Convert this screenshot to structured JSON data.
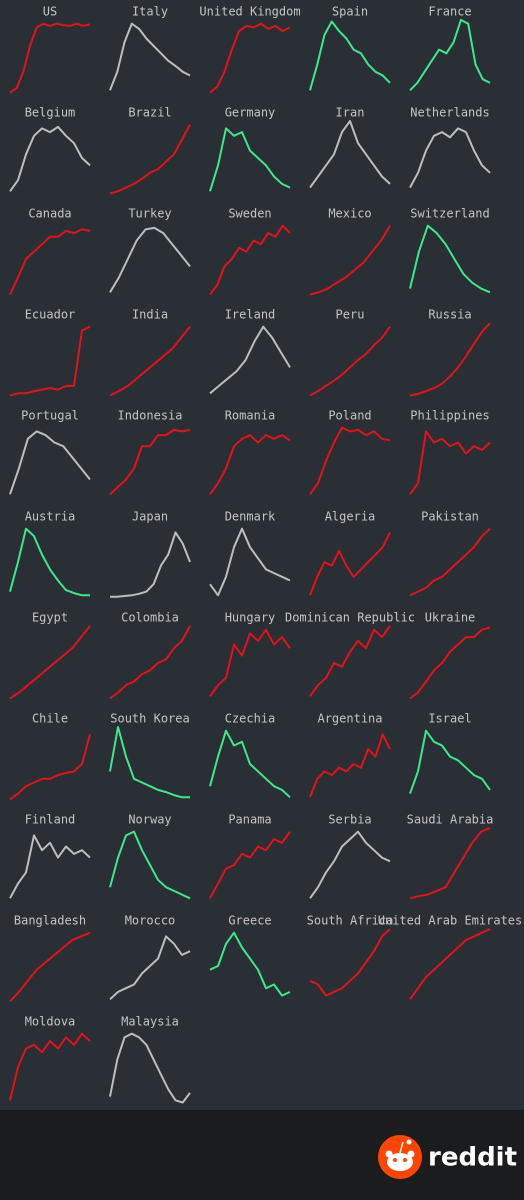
{
  "chart_data": {
    "type": "line",
    "ylim": [
      0,
      100
    ],
    "series": [
      {
        "name": "US",
        "color": "#e3121b",
        "values": [
          2,
          8,
          30,
          65,
          90,
          95,
          92,
          95,
          93,
          92,
          95,
          92,
          94
        ]
      },
      {
        "name": "Italy",
        "color": "#bdbdbd",
        "values": [
          5,
          30,
          70,
          95,
          88,
          75,
          65,
          55,
          45,
          38,
          30,
          25
        ]
      },
      {
        "name": "United Kingdom",
        "color": "#e3121b",
        "values": [
          2,
          10,
          30,
          60,
          85,
          92,
          90,
          95,
          88,
          92,
          85,
          90
        ]
      },
      {
        "name": "Spain",
        "color": "#3ee88a",
        "values": [
          5,
          40,
          80,
          98,
          85,
          75,
          60,
          55,
          40,
          30,
          25,
          15
        ]
      },
      {
        "name": "France",
        "color": "#3ee88a",
        "values": [
          5,
          15,
          30,
          45,
          60,
          55,
          70,
          100,
          95,
          40,
          20,
          15
        ]
      },
      {
        "name": "Belgium",
        "color": "#bdbdbd",
        "values": [
          5,
          20,
          55,
          80,
          90,
          85,
          92,
          80,
          70,
          50,
          40
        ]
      },
      {
        "name": "Brazil",
        "color": "#e3121b",
        "values": [
          2,
          5,
          10,
          15,
          22,
          30,
          35,
          45,
          55,
          75,
          95
        ]
      },
      {
        "name": "Germany",
        "color": "#3ee88a",
        "values": [
          5,
          40,
          90,
          80,
          85,
          60,
          50,
          40,
          25,
          15,
          10
        ]
      },
      {
        "name": "Iran",
        "color": "#bdbdbd",
        "values": [
          10,
          25,
          40,
          55,
          85,
          100,
          70,
          55,
          40,
          25,
          15
        ]
      },
      {
        "name": "Netherlands",
        "color": "#bdbdbd",
        "values": [
          10,
          30,
          60,
          80,
          85,
          78,
          90,
          85,
          60,
          40,
          30
        ]
      },
      {
        "name": "Canada",
        "color": "#e3121b",
        "values": [
          2,
          25,
          50,
          60,
          70,
          80,
          80,
          88,
          85,
          90,
          88
        ]
      },
      {
        "name": "Turkey",
        "color": "#bdbdbd",
        "values": [
          5,
          25,
          50,
          75,
          90,
          92,
          85,
          70,
          55,
          40
        ]
      },
      {
        "name": "Sweden",
        "color": "#e3121b",
        "values": [
          2,
          15,
          40,
          50,
          65,
          60,
          75,
          70,
          85,
          80,
          95,
          85
        ]
      },
      {
        "name": "Mexico",
        "color": "#e3121b",
        "values": [
          2,
          5,
          10,
          18,
          25,
          35,
          45,
          60,
          75,
          95
        ]
      },
      {
        "name": "Switzerland",
        "color": "#3ee88a",
        "values": [
          10,
          60,
          95,
          85,
          70,
          50,
          30,
          18,
          10,
          5
        ]
      },
      {
        "name": "Ecuador",
        "color": "#e3121b",
        "values": [
          2,
          5,
          5,
          8,
          10,
          12,
          10,
          15,
          15,
          90,
          95
        ]
      },
      {
        "name": "India",
        "color": "#e3121b",
        "values": [
          2,
          8,
          15,
          25,
          35,
          45,
          55,
          65,
          80,
          95
        ]
      },
      {
        "name": "Ireland",
        "color": "#bdbdbd",
        "values": [
          5,
          15,
          25,
          35,
          50,
          75,
          95,
          80,
          60,
          40
        ]
      },
      {
        "name": "Peru",
        "color": "#e3121b",
        "values": [
          2,
          8,
          15,
          22,
          30,
          40,
          50,
          58,
          70,
          80,
          95
        ]
      },
      {
        "name": "Russia",
        "color": "#e3121b",
        "values": [
          2,
          4,
          8,
          12,
          18,
          28,
          40,
          55,
          72,
          88,
          100
        ]
      },
      {
        "name": "Portugal",
        "color": "#bdbdbd",
        "values": [
          5,
          40,
          80,
          90,
          85,
          75,
          70,
          55,
          40,
          25
        ]
      },
      {
        "name": "Indonesia",
        "color": "#e3121b",
        "values": [
          5,
          15,
          25,
          40,
          70,
          70,
          85,
          85,
          92,
          90,
          92
        ]
      },
      {
        "name": "Romania",
        "color": "#e3121b",
        "values": [
          5,
          20,
          40,
          70,
          80,
          85,
          75,
          85,
          80,
          85,
          78
        ]
      },
      {
        "name": "Poland",
        "color": "#e3121b",
        "values": [
          5,
          20,
          50,
          75,
          95,
          90,
          92,
          85,
          90,
          80,
          78
        ]
      },
      {
        "name": "Philippines",
        "color": "#e3121b",
        "values": [
          5,
          20,
          90,
          75,
          80,
          70,
          75,
          60,
          70,
          65,
          75
        ]
      },
      {
        "name": "Austria",
        "color": "#3ee88a",
        "values": [
          10,
          50,
          95,
          85,
          60,
          40,
          25,
          12,
          8,
          5,
          5
        ]
      },
      {
        "name": "Japan",
        "color": "#bdbdbd",
        "values": [
          3,
          3,
          4,
          5,
          7,
          10,
          20,
          45,
          60,
          90,
          75,
          50
        ]
      },
      {
        "name": "Denmark",
        "color": "#bdbdbd",
        "values": [
          20,
          5,
          30,
          70,
          95,
          70,
          55,
          40,
          35,
          30,
          25
        ]
      },
      {
        "name": "Algeria",
        "color": "#e3121b",
        "values": [
          5,
          30,
          50,
          45,
          65,
          45,
          30,
          40,
          50,
          60,
          70,
          90
        ]
      },
      {
        "name": "Pakistan",
        "color": "#e3121b",
        "values": [
          5,
          10,
          15,
          25,
          30,
          40,
          50,
          60,
          70,
          85,
          95
        ]
      },
      {
        "name": "Egypt",
        "color": "#e3121b",
        "values": [
          2,
          10,
          20,
          30,
          40,
          50,
          60,
          70,
          85,
          100
        ]
      },
      {
        "name": "Colombia",
        "color": "#e3121b",
        "values": [
          2,
          10,
          20,
          25,
          35,
          40,
          50,
          55,
          70,
          80,
          100
        ]
      },
      {
        "name": "Hungary",
        "color": "#e3121b",
        "values": [
          5,
          20,
          30,
          75,
          60,
          90,
          80,
          95,
          75,
          85,
          70
        ]
      },
      {
        "name": "Dominican Republic",
        "color": "#e3121b",
        "values": [
          5,
          20,
          30,
          50,
          45,
          65,
          80,
          70,
          95,
          85,
          100
        ]
      },
      {
        "name": "Ukraine",
        "color": "#e3121b",
        "values": [
          2,
          10,
          25,
          40,
          50,
          65,
          75,
          85,
          85,
          95,
          98
        ]
      },
      {
        "name": "Chile",
        "color": "#e3121b",
        "values": [
          2,
          10,
          20,
          25,
          30,
          30,
          35,
          38,
          40,
          50,
          90
        ]
      },
      {
        "name": "South Korea",
        "color": "#3ee88a",
        "values": [
          40,
          100,
          60,
          30,
          25,
          20,
          15,
          12,
          8,
          5,
          5
        ]
      },
      {
        "name": "Czechia",
        "color": "#3ee88a",
        "values": [
          20,
          60,
          95,
          75,
          80,
          50,
          40,
          30,
          20,
          15,
          5
        ]
      },
      {
        "name": "Argentina",
        "color": "#e3121b",
        "values": [
          5,
          30,
          40,
          35,
          45,
          40,
          50,
          45,
          70,
          60,
          90,
          70
        ]
      },
      {
        "name": "Israel",
        "color": "#3ee88a",
        "values": [
          10,
          40,
          95,
          80,
          75,
          60,
          55,
          45,
          35,
          30,
          15
        ]
      },
      {
        "name": "Finland",
        "color": "#bdbdbd",
        "values": [
          5,
          25,
          40,
          90,
          70,
          80,
          60,
          75,
          65,
          70,
          60
        ]
      },
      {
        "name": "Norway",
        "color": "#3ee88a",
        "values": [
          20,
          60,
          90,
          95,
          70,
          50,
          30,
          20,
          15,
          10,
          5
        ]
      },
      {
        "name": "Panama",
        "color": "#e3121b",
        "values": [
          5,
          25,
          45,
          50,
          65,
          60,
          75,
          70,
          85,
          80,
          95
        ]
      },
      {
        "name": "Serbia",
        "color": "#bdbdbd",
        "values": [
          5,
          20,
          40,
          55,
          75,
          85,
          95,
          80,
          70,
          60,
          55
        ]
      },
      {
        "name": "Saudi Arabia",
        "color": "#e3121b",
        "values": [
          5,
          8,
          10,
          15,
          20,
          40,
          60,
          80,
          95,
          100
        ]
      },
      {
        "name": "Bangladesh",
        "color": "#e3121b",
        "values": [
          2,
          15,
          30,
          45,
          55,
          65,
          75,
          85,
          90,
          95
        ]
      },
      {
        "name": "Morocco",
        "color": "#bdbdbd",
        "values": [
          5,
          15,
          20,
          25,
          40,
          50,
          60,
          90,
          80,
          65,
          70
        ]
      },
      {
        "name": "Greece",
        "color": "#3ee88a",
        "values": [
          45,
          50,
          80,
          95,
          75,
          60,
          45,
          20,
          25,
          10,
          15
        ]
      },
      {
        "name": "South Africa",
        "color": "#e3121b",
        "values": [
          30,
          25,
          10,
          15,
          20,
          30,
          40,
          55,
          70,
          90,
          100
        ]
      },
      {
        "name": "United Arab Emirates",
        "color": "#e3121b",
        "values": [
          5,
          20,
          35,
          45,
          55,
          65,
          75,
          85,
          90,
          95,
          100
        ]
      },
      {
        "name": "Moldova",
        "color": "#e3121b",
        "values": [
          5,
          50,
          75,
          80,
          70,
          85,
          75,
          90,
          80,
          95,
          85
        ]
      },
      {
        "name": "Malaysia",
        "color": "#bdbdbd",
        "values": [
          10,
          60,
          90,
          95,
          90,
          80,
          60,
          40,
          20,
          5,
          2,
          15
        ]
      }
    ]
  },
  "footer": {
    "brand": "reddit"
  }
}
